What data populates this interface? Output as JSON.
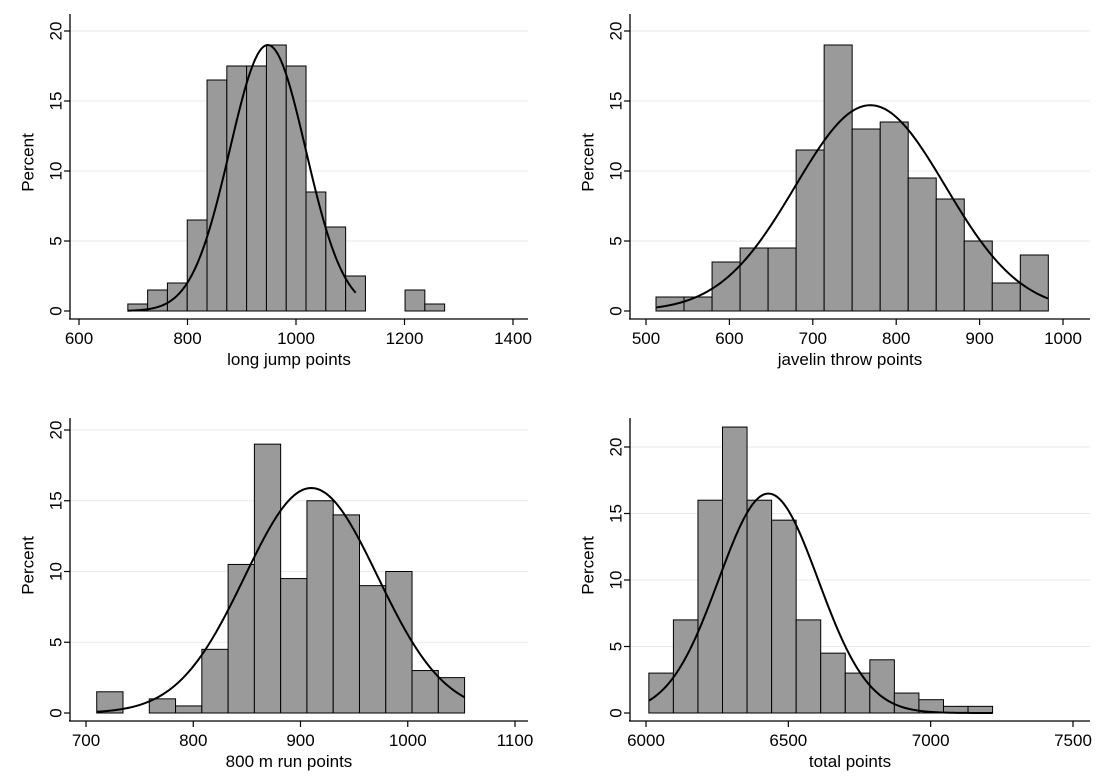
{
  "chart_data": [
    {
      "type": "bar",
      "subtype": "histogram-with-normal-curve",
      "xlabel": "long jump points",
      "ylabel": "Percent",
      "xlim": [
        600,
        1400
      ],
      "ylim": [
        0,
        20
      ],
      "xticks": [
        600,
        800,
        1000,
        1200,
        1400
      ],
      "yticks": [
        0,
        5,
        10,
        15,
        20
      ],
      "bin_width": 36.5,
      "bins": [
        {
          "x0": 690,
          "x1": 726.5,
          "value": 0.5
        },
        {
          "x0": 726.5,
          "x1": 763,
          "value": 1.5
        },
        {
          "x0": 763,
          "x1": 799.5,
          "value": 2.0
        },
        {
          "x0": 799.5,
          "x1": 836,
          "value": 6.5
        },
        {
          "x0": 836,
          "x1": 872.5,
          "value": 16.5
        },
        {
          "x0": 872.5,
          "x1": 909,
          "value": 17.5
        },
        {
          "x0": 909,
          "x1": 945.5,
          "value": 17.5
        },
        {
          "x0": 945.5,
          "x1": 982,
          "value": 19.0
        },
        {
          "x0": 982,
          "x1": 1018.5,
          "value": 17.5
        },
        {
          "x0": 1018.5,
          "x1": 1055,
          "value": 8.5
        },
        {
          "x0": 1055,
          "x1": 1091.5,
          "value": 6.0
        },
        {
          "x0": 1091.5,
          "x1": 1128,
          "value": 2.5
        },
        {
          "x0": 1128,
          "x1": 1164.5,
          "value": 0
        },
        {
          "x0": 1164.5,
          "x1": 1201,
          "value": 0
        },
        {
          "x0": 1201,
          "x1": 1237.5,
          "value": 1.5
        },
        {
          "x0": 1237.5,
          "x1": 1274,
          "value": 0.5
        }
      ],
      "normal_curve": {
        "mean": 948,
        "sd": 70,
        "peak": 19.0,
        "x_from": 690,
        "x_to": 1110
      }
    },
    {
      "type": "bar",
      "subtype": "histogram-with-normal-curve",
      "xlabel": "javelin throw points",
      "ylabel": "Percent",
      "xlim": [
        500,
        1000
      ],
      "ylim": [
        0,
        20
      ],
      "xticks": [
        500,
        600,
        700,
        800,
        900,
        1000
      ],
      "yticks": [
        0,
        5,
        10,
        15,
        20
      ],
      "bin_width": 33.6,
      "bins": [
        {
          "x0": 512,
          "x1": 545.6,
          "value": 1.0
        },
        {
          "x0": 545.6,
          "x1": 579.2,
          "value": 1.0
        },
        {
          "x0": 579.2,
          "x1": 612.8,
          "value": 3.5
        },
        {
          "x0": 612.8,
          "x1": 646.4,
          "value": 4.5
        },
        {
          "x0": 646.4,
          "x1": 680,
          "value": 4.5
        },
        {
          "x0": 680,
          "x1": 713.6,
          "value": 11.5
        },
        {
          "x0": 713.6,
          "x1": 747.2,
          "value": 19.0
        },
        {
          "x0": 747.2,
          "x1": 780.8,
          "value": 13.0
        },
        {
          "x0": 780.8,
          "x1": 814.4,
          "value": 13.5
        },
        {
          "x0": 814.4,
          "x1": 848,
          "value": 9.5
        },
        {
          "x0": 848,
          "x1": 881.6,
          "value": 8.0
        },
        {
          "x0": 881.6,
          "x1": 915.2,
          "value": 5.0
        },
        {
          "x0": 915.2,
          "x1": 948.8,
          "value": 2.0
        },
        {
          "x0": 948.8,
          "x1": 982.4,
          "value": 4.0
        }
      ],
      "normal_curve": {
        "mean": 769,
        "sd": 90,
        "peak": 14.7,
        "x_from": 512,
        "x_to": 982
      }
    },
    {
      "type": "bar",
      "subtype": "histogram-with-normal-curve",
      "xlabel": "800 m run points",
      "ylabel": "Percent",
      "xlim": [
        700,
        1100
      ],
      "ylim": [
        0,
        20
      ],
      "xticks": [
        700,
        800,
        900,
        1000,
        1100
      ],
      "yticks": [
        0,
        5,
        10,
        15,
        20
      ],
      "bin_width": 24.5,
      "bins": [
        {
          "x0": 710,
          "x1": 734.5,
          "value": 1.5
        },
        {
          "x0": 734.5,
          "x1": 759,
          "value": 0
        },
        {
          "x0": 759,
          "x1": 783.5,
          "value": 1.0
        },
        {
          "x0": 783.5,
          "x1": 808,
          "value": 0.5
        },
        {
          "x0": 808,
          "x1": 832.5,
          "value": 4.5
        },
        {
          "x0": 832.5,
          "x1": 857,
          "value": 10.5
        },
        {
          "x0": 857,
          "x1": 881.5,
          "value": 19.0
        },
        {
          "x0": 881.5,
          "x1": 906,
          "value": 9.5
        },
        {
          "x0": 906,
          "x1": 930.5,
          "value": 15.0
        },
        {
          "x0": 930.5,
          "x1": 955,
          "value": 14.0
        },
        {
          "x0": 955,
          "x1": 979.5,
          "value": 9.0
        },
        {
          "x0": 979.5,
          "x1": 1004,
          "value": 10.0
        },
        {
          "x0": 1004,
          "x1": 1028.5,
          "value": 3.0
        },
        {
          "x0": 1028.5,
          "x1": 1053,
          "value": 2.5
        }
      ],
      "normal_curve": {
        "mean": 910,
        "sd": 62,
        "peak": 15.9,
        "x_from": 710,
        "x_to": 1053
      }
    },
    {
      "type": "bar",
      "subtype": "histogram-with-normal-curve",
      "xlabel": "total points",
      "ylabel": "Percent",
      "xlim": [
        6000,
        7500
      ],
      "ylim": [
        0,
        22
      ],
      "xticks": [
        6000,
        6500,
        7000,
        7500
      ],
      "yticks": [
        0,
        5,
        10,
        15,
        20
      ],
      "bin_width": 86.25,
      "bins": [
        {
          "x0": 6010,
          "x1": 6096.25,
          "value": 3.0
        },
        {
          "x0": 6096.25,
          "x1": 6182.5,
          "value": 7.0
        },
        {
          "x0": 6182.5,
          "x1": 6268.75,
          "value": 16.0
        },
        {
          "x0": 6268.75,
          "x1": 6355,
          "value": 21.5
        },
        {
          "x0": 6355,
          "x1": 6441.25,
          "value": 16.0
        },
        {
          "x0": 6441.25,
          "x1": 6527.5,
          "value": 14.5
        },
        {
          "x0": 6527.5,
          "x1": 6613.75,
          "value": 7.0
        },
        {
          "x0": 6613.75,
          "x1": 6700,
          "value": 4.5
        },
        {
          "x0": 6700,
          "x1": 6786.25,
          "value": 3.0
        },
        {
          "x0": 6786.25,
          "x1": 6872.5,
          "value": 4.0
        },
        {
          "x0": 6872.5,
          "x1": 6958.75,
          "value": 1.5
        },
        {
          "x0": 6958.75,
          "x1": 7045,
          "value": 1.0
        },
        {
          "x0": 7045,
          "x1": 7131.25,
          "value": 0.5
        },
        {
          "x0": 7131.25,
          "x1": 7217.5,
          "value": 0.5
        }
      ],
      "normal_curve": {
        "mean": 6430,
        "sd": 175,
        "peak": 16.5,
        "x_from": 6010,
        "x_to": 7218
      }
    }
  ],
  "style": {
    "bar_fill": "#9a9a9a",
    "bar_stroke": "#000000",
    "curve_color": "#000000",
    "grid_color": "#eaeaea",
    "background": "#ffffff"
  }
}
